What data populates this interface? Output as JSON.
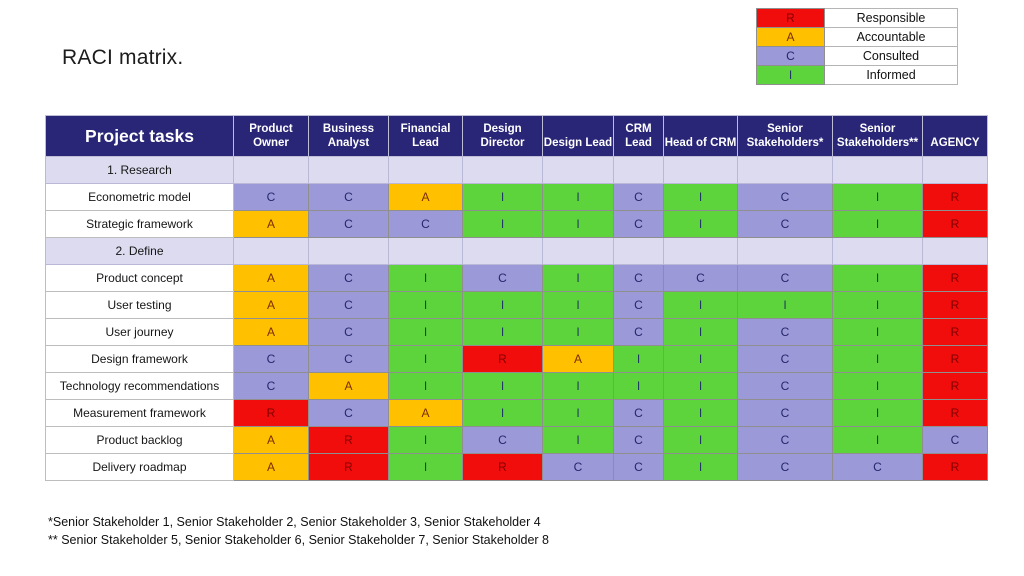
{
  "title": "RACI matrix.",
  "legend": {
    "items": [
      {
        "code": "R",
        "label": "Responsible",
        "color": "#f20d0d",
        "text_color": "#7f0000"
      },
      {
        "code": "A",
        "label": "Accountable",
        "color": "#ffc000",
        "text_color": "#7b2d00"
      },
      {
        "code": "C",
        "label": "Consulted",
        "color": "#9b99d7",
        "text_color": "#26266e"
      },
      {
        "code": "I",
        "label": "Informed",
        "color": "#5dd33c",
        "text_color": "#1f3864"
      }
    ]
  },
  "colors": {
    "header_bg": "#292577",
    "header_text": "#ffffff",
    "section_row_bg": "#dcdbef"
  },
  "chart_data": {
    "type": "table",
    "title": "RACI matrix.",
    "columns": [
      "Project tasks",
      "Product Owner",
      "Business Analyst",
      "Financial Lead",
      "Design Director",
      "Design Lead",
      "CRM Lead",
      "Head of CRM",
      "Senior Stakeholders*",
      "Senior Stakeholders**",
      "AGENCY"
    ],
    "rows": [
      {
        "type": "section",
        "label": "1. Research",
        "cells": [
          "",
          "",
          "",
          "",
          "",
          "",
          "",
          "",
          "",
          ""
        ]
      },
      {
        "type": "task",
        "label": "Econometric model",
        "cells": [
          "C",
          "C",
          "A",
          "I",
          "I",
          "C",
          "I",
          "C",
          "I",
          "R"
        ]
      },
      {
        "type": "task",
        "label": "Strategic framework",
        "cells": [
          "A",
          "C",
          "C",
          "I",
          "I",
          "C",
          "I",
          "C",
          "I",
          "R"
        ]
      },
      {
        "type": "section",
        "label": "2. Define",
        "cells": [
          "",
          "",
          "",
          "",
          "",
          "",
          "",
          "",
          "",
          ""
        ]
      },
      {
        "type": "task",
        "label": "Product concept",
        "cells": [
          "A",
          "C",
          "I",
          "C",
          "I",
          "C",
          "C",
          "C",
          "I",
          "R"
        ]
      },
      {
        "type": "task",
        "label": "User testing",
        "cells": [
          "A",
          "C",
          "I",
          "I",
          "I",
          "C",
          "I",
          "I",
          "I",
          "R"
        ]
      },
      {
        "type": "task",
        "label": "User journey",
        "cells": [
          "A",
          "C",
          "I",
          "I",
          "I",
          "C",
          "I",
          "C",
          "I",
          "R"
        ]
      },
      {
        "type": "task",
        "label": "Design framework",
        "cells": [
          "C",
          "C",
          "I",
          "R",
          "A",
          "I",
          "I",
          "C",
          "I",
          "R"
        ]
      },
      {
        "type": "task",
        "label": "Technology recommendations",
        "cells": [
          "C",
          "A",
          "I",
          "I",
          "I",
          "I",
          "I",
          "C",
          "I",
          "R"
        ]
      },
      {
        "type": "task",
        "label": "Measurement framework",
        "cells": [
          "R",
          "C",
          "A",
          "I",
          "I",
          "C",
          "I",
          "C",
          "I",
          "R"
        ]
      },
      {
        "type": "task",
        "label": "Product backlog",
        "cells": [
          "A",
          "R",
          "I",
          "C",
          "I",
          "C",
          "I",
          "C",
          "I",
          "C"
        ]
      },
      {
        "type": "task",
        "label": "Delivery roadmap",
        "cells": [
          "A",
          "R",
          "I",
          "R",
          "C",
          "C",
          "I",
          "C",
          "C",
          "R"
        ]
      }
    ],
    "legend_mapping": {
      "R": "Responsible",
      "A": "Accountable",
      "C": "Consulted",
      "I": "Informed"
    }
  },
  "footnotes": [
    "*Senior Stakeholder 1, Senior Stakeholder 2, Senior Stakeholder 3, Senior Stakeholder 4",
    "** Senior Stakeholder 5, Senior Stakeholder 6, Senior Stakeholder 7, Senior Stakeholder 8"
  ]
}
